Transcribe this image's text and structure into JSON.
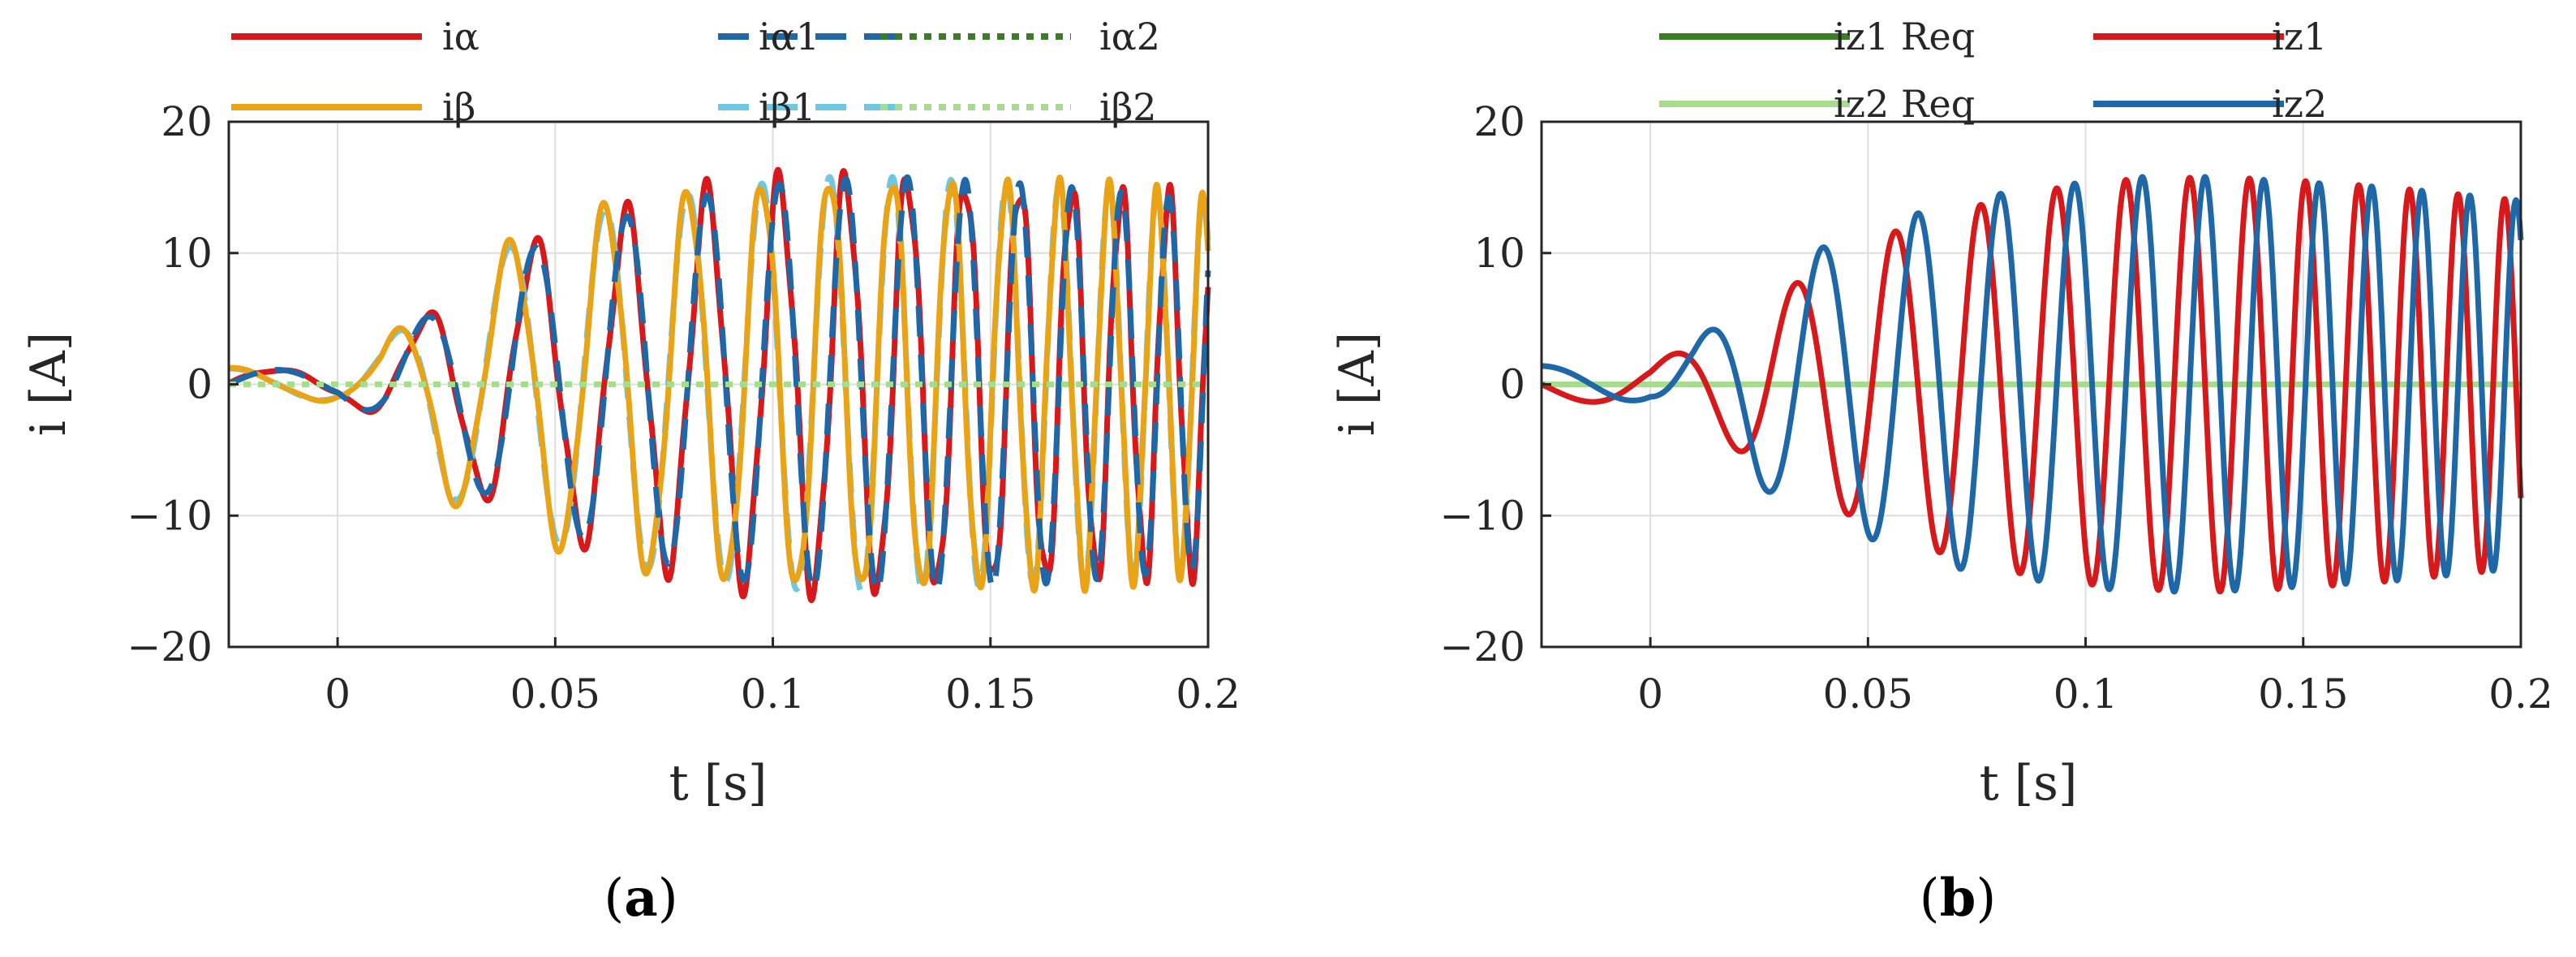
{
  "chart_data": [
    {
      "type": "line",
      "panel_label": "a",
      "xlabel": "t [s]",
      "ylabel": "i [A]",
      "xlim": [
        -0.025,
        0.2
      ],
      "ylim": [
        -20,
        20
      ],
      "xticks": [
        0,
        0.05,
        0.1,
        0.15,
        0.2
      ],
      "xtick_labels": [
        "0",
        "0.05",
        "0.1",
        "0.15",
        "0.2"
      ],
      "yticks": [
        -20,
        -10,
        0,
        10,
        20
      ],
      "ytick_labels": [
        "−20",
        "−10",
        "0",
        "10",
        "20"
      ],
      "grid": true,
      "legend_position": "top",
      "series": [
        {
          "name": "iα",
          "color": "#d7191c",
          "style": "solid",
          "signal": {
            "phase": 0.0,
            "jitter": 0.09
          },
          "x": [
            -0.025,
            0.0,
            0.01,
            0.025,
            0.04,
            0.055,
            0.07,
            0.09,
            0.11,
            0.13,
            0.15,
            0.17,
            0.2
          ],
          "envelope": [
            1.2,
            1.0,
            2.6,
            6.2,
            9.8,
            11.5,
            13.2,
            14.8,
            15.6,
            15.8,
            15.5,
            15.0,
            14.0
          ]
        },
        {
          "name": "iβ1",
          "color": "#6fc8e2",
          "style": "dashed",
          "signal": {
            "phase": 1.5708,
            "jitter": 0.0
          },
          "x": [
            -0.025,
            0.0,
            0.01,
            0.025,
            0.04,
            0.055,
            0.07,
            0.09,
            0.11,
            0.13,
            0.15,
            0.17,
            0.2
          ],
          "envelope": [
            1.2,
            1.2,
            2.6,
            8.5,
            10.5,
            12.8,
            14.0,
            15.0,
            15.8,
            15.8,
            15.4,
            15.0,
            14.0
          ]
        },
        {
          "name": "iβ",
          "color": "#e8a317",
          "style": "solid",
          "signal": {
            "phase": 1.5708,
            "jitter": 0.06
          },
          "x": [
            -0.025,
            0.0,
            0.01,
            0.025,
            0.04,
            0.055,
            0.07,
            0.09,
            0.11,
            0.13,
            0.15,
            0.17,
            0.2
          ],
          "envelope": [
            1.2,
            1.2,
            2.6,
            8.5,
            10.5,
            12.8,
            14.0,
            15.0,
            15.8,
            15.8,
            15.4,
            15.0,
            14.0
          ]
        },
        {
          "name": "iα1",
          "color": "#1f68a8",
          "style": "dashed",
          "signal": {
            "phase": 0.0,
            "jitter": 0.0
          },
          "x": [
            -0.025,
            0.0,
            0.01,
            0.025,
            0.04,
            0.055,
            0.07,
            0.09,
            0.11,
            0.13,
            0.15,
            0.17,
            0.2
          ],
          "envelope": [
            1.2,
            1.0,
            2.6,
            6.2,
            9.8,
            11.5,
            13.2,
            14.8,
            15.6,
            15.8,
            15.5,
            15.0,
            14.0
          ]
        },
        {
          "name": "iα2",
          "color": "#3a7d22",
          "style": "dotted",
          "constant": 0
        },
        {
          "name": "iβ2",
          "color": "#a6dc8e",
          "style": "dotted",
          "constant": 0
        }
      ],
      "legend": [
        {
          "name": "iα",
          "color": "#d7191c",
          "style": "solid"
        },
        {
          "name": "iα1",
          "color": "#1f68a8",
          "style": "dashed"
        },
        {
          "name": "iα2",
          "color": "#3a7d22",
          "style": "dotted"
        },
        {
          "name": "iβ",
          "color": "#e8a317",
          "style": "solid"
        },
        {
          "name": "iβ1",
          "color": "#6fc8e2",
          "style": "dashed"
        },
        {
          "name": "iβ2",
          "color": "#a6dc8e",
          "style": "dotted"
        }
      ]
    },
    {
      "type": "line",
      "panel_label": "b",
      "xlabel": "t [s]",
      "ylabel": "i [A]",
      "xlim": [
        -0.025,
        0.2
      ],
      "ylim": [
        -20,
        20
      ],
      "xticks": [
        0,
        0.05,
        0.1,
        0.15,
        0.2
      ],
      "xtick_labels": [
        "0",
        "0.05",
        "0.1",
        "0.15",
        "0.2"
      ],
      "yticks": [
        -20,
        -10,
        0,
        10,
        20
      ],
      "ytick_labels": [
        "−20",
        "−10",
        "0",
        "10",
        "20"
      ],
      "grid": true,
      "legend_position": "top",
      "series": [
        {
          "name": "iz1 Req",
          "color": "#3a7d22",
          "style": "solid",
          "constant": 0
        },
        {
          "name": "iz2 Req",
          "color": "#a6dc8e",
          "style": "solid",
          "constant": 0
        },
        {
          "name": "iz1",
          "color": "#d7191c",
          "style": "solid",
          "signal": {
            "phase": 3.1416,
            "jitter": 0.0
          },
          "x": [
            -0.025,
            0.0,
            0.01,
            0.025,
            0.04,
            0.055,
            0.07,
            0.09,
            0.11,
            0.13,
            0.15,
            0.17,
            0.2
          ],
          "envelope": [
            1.2,
            1.5,
            3.0,
            6.0,
            9.0,
            11.5,
            13.2,
            14.8,
            15.6,
            15.8,
            15.5,
            15.0,
            14.0
          ]
        },
        {
          "name": "iz2",
          "color": "#1f68a8",
          "style": "solid",
          "signal": {
            "phase": 1.5708,
            "jitter": 0.0
          },
          "x": [
            -0.025,
            0.0,
            0.01,
            0.025,
            0.04,
            0.055,
            0.07,
            0.09,
            0.11,
            0.13,
            0.15,
            0.17,
            0.2
          ],
          "envelope": [
            1.4,
            1.2,
            3.0,
            7.8,
            10.5,
            12.3,
            14.0,
            15.0,
            15.8,
            15.8,
            15.4,
            15.0,
            14.0
          ]
        }
      ],
      "legend": [
        {
          "name": "iz1 Req",
          "color": "#3a7d22",
          "style": "solid"
        },
        {
          "name": "iz1",
          "color": "#d7191c",
          "style": "solid"
        },
        {
          "name": "iz2 Req",
          "color": "#a6dc8e",
          "style": "solid"
        },
        {
          "name": "iz2",
          "color": "#1f68a8",
          "style": "solid"
        }
      ]
    }
  ]
}
